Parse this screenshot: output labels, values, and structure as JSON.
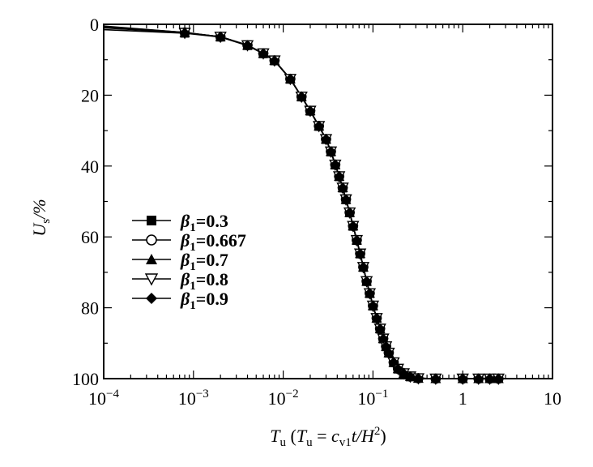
{
  "chart_data": {
    "type": "line",
    "x_scale": "log",
    "xlim": [
      0.0001,
      10
    ],
    "ylim": [
      0,
      100
    ],
    "y_inverted": true,
    "grid": false,
    "legend_position": "left-middle",
    "xlabel": {
      "main": "T",
      "main_sub": "u",
      "open": " (",
      "t": "T",
      "t_sub": "u",
      "eq": " = ",
      "c": "c",
      "c_sub": "v1",
      "rest": "t/H",
      "sup": "2",
      "close": ")"
    },
    "ylabel": {
      "main": "U",
      "sub": "s",
      "rest": "/%"
    },
    "x_tick_labels": [
      {
        "value": 0.0001,
        "base": "10",
        "exp": "−4"
      },
      {
        "value": 0.001,
        "base": "10",
        "exp": "−3"
      },
      {
        "value": 0.01,
        "base": "10",
        "exp": "−2"
      },
      {
        "value": 0.1,
        "base": "10",
        "exp": "−1"
      },
      {
        "value": 1,
        "base": "1",
        "exp": ""
      },
      {
        "value": 10,
        "base": "10",
        "exp": ""
      }
    ],
    "y_tick_labels": [
      {
        "value": 0,
        "text": "0"
      },
      {
        "value": 20,
        "text": "20"
      },
      {
        "value": 40,
        "text": "40"
      },
      {
        "value": 60,
        "text": "60"
      },
      {
        "value": 80,
        "text": "80"
      },
      {
        "value": 100,
        "text": "100"
      }
    ],
    "x": [
      0.0001,
      0.0008,
      0.002,
      0.004,
      0.006,
      0.008,
      0.012,
      0.016,
      0.02,
      0.025,
      0.03,
      0.034,
      0.038,
      0.042,
      0.046,
      0.05,
      0.055,
      0.06,
      0.066,
      0.072,
      0.078,
      0.085,
      0.092,
      0.1,
      0.11,
      0.12,
      0.13,
      0.14,
      0.15,
      0.17,
      0.19,
      0.22,
      0.26,
      0.32,
      0.5,
      1.0,
      1.5,
      2.0,
      2.5
    ],
    "series": [
      {
        "name": "β1=0.3",
        "marker": "square",
        "label_pre": "β",
        "label_sub": "1",
        "label_post": "=0.3",
        "values": [
          1.5,
          2.5,
          3.6,
          6.0,
          8.3,
          10.3,
          15.5,
          20.5,
          24.5,
          28.8,
          32.5,
          36.0,
          39.7,
          43.0,
          46.2,
          49.5,
          53.2,
          57.0,
          61.0,
          64.8,
          68.6,
          72.6,
          76.0,
          79.5,
          83.0,
          86.0,
          88.8,
          91.0,
          92.8,
          95.5,
          97.3,
          98.6,
          99.5,
          99.9,
          100,
          100,
          100,
          100,
          100
        ]
      },
      {
        "name": "β1=0.667",
        "marker": "circle-open",
        "label_pre": "β",
        "label_sub": "1",
        "label_post": "=0.667",
        "values": [
          0.5,
          2.3,
          3.5,
          5.9,
          8.2,
          10.2,
          15.4,
          20.4,
          24.4,
          28.7,
          32.4,
          35.9,
          39.6,
          42.9,
          46.1,
          49.4,
          53.1,
          56.9,
          60.9,
          64.7,
          68.5,
          72.5,
          75.9,
          79.4,
          82.9,
          85.9,
          88.7,
          90.9,
          92.7,
          95.4,
          97.2,
          98.5,
          99.4,
          99.9,
          100,
          100,
          100,
          100,
          100
        ]
      },
      {
        "name": "β1=0.7",
        "marker": "triangle-up",
        "label_pre": "β",
        "label_sub": "1",
        "label_post": "=0.7",
        "values": [
          0.6,
          2.3,
          3.5,
          5.9,
          8.2,
          10.2,
          15.4,
          20.4,
          24.4,
          28.7,
          32.4,
          35.9,
          39.6,
          42.9,
          46.1,
          49.4,
          53.1,
          56.9,
          60.9,
          64.7,
          68.5,
          72.5,
          75.9,
          79.4,
          82.9,
          85.9,
          88.7,
          90.9,
          92.7,
          95.4,
          97.2,
          98.5,
          99.4,
          99.9,
          100,
          100,
          100,
          100,
          100
        ]
      },
      {
        "name": "β1=0.8",
        "marker": "triangle-down-open",
        "label_pre": "β",
        "label_sub": "1",
        "label_post": "=0.8",
        "values": [
          0.8,
          2.4,
          3.5,
          5.9,
          8.2,
          10.2,
          15.4,
          20.4,
          24.4,
          28.7,
          32.4,
          35.9,
          39.6,
          42.9,
          46.1,
          49.4,
          53.1,
          56.9,
          60.9,
          64.7,
          68.5,
          72.5,
          75.9,
          79.4,
          82.9,
          85.9,
          88.7,
          90.9,
          92.7,
          95.4,
          97.2,
          98.5,
          99.4,
          99.9,
          100,
          100,
          100,
          100,
          100
        ]
      },
      {
        "name": "β1=0.9",
        "marker": "diamond",
        "label_pre": "β",
        "label_sub": "1",
        "label_post": "=0.9",
        "values": [
          1.0,
          2.4,
          3.5,
          5.9,
          8.2,
          10.2,
          15.4,
          20.4,
          24.4,
          28.7,
          32.4,
          35.9,
          39.6,
          42.9,
          46.1,
          49.4,
          53.1,
          56.9,
          60.9,
          64.7,
          68.5,
          72.5,
          75.9,
          79.4,
          82.9,
          85.9,
          88.7,
          90.9,
          92.7,
          95.4,
          97.2,
          98.5,
          99.4,
          99.9,
          100,
          100,
          100,
          100,
          100
        ]
      }
    ]
  }
}
